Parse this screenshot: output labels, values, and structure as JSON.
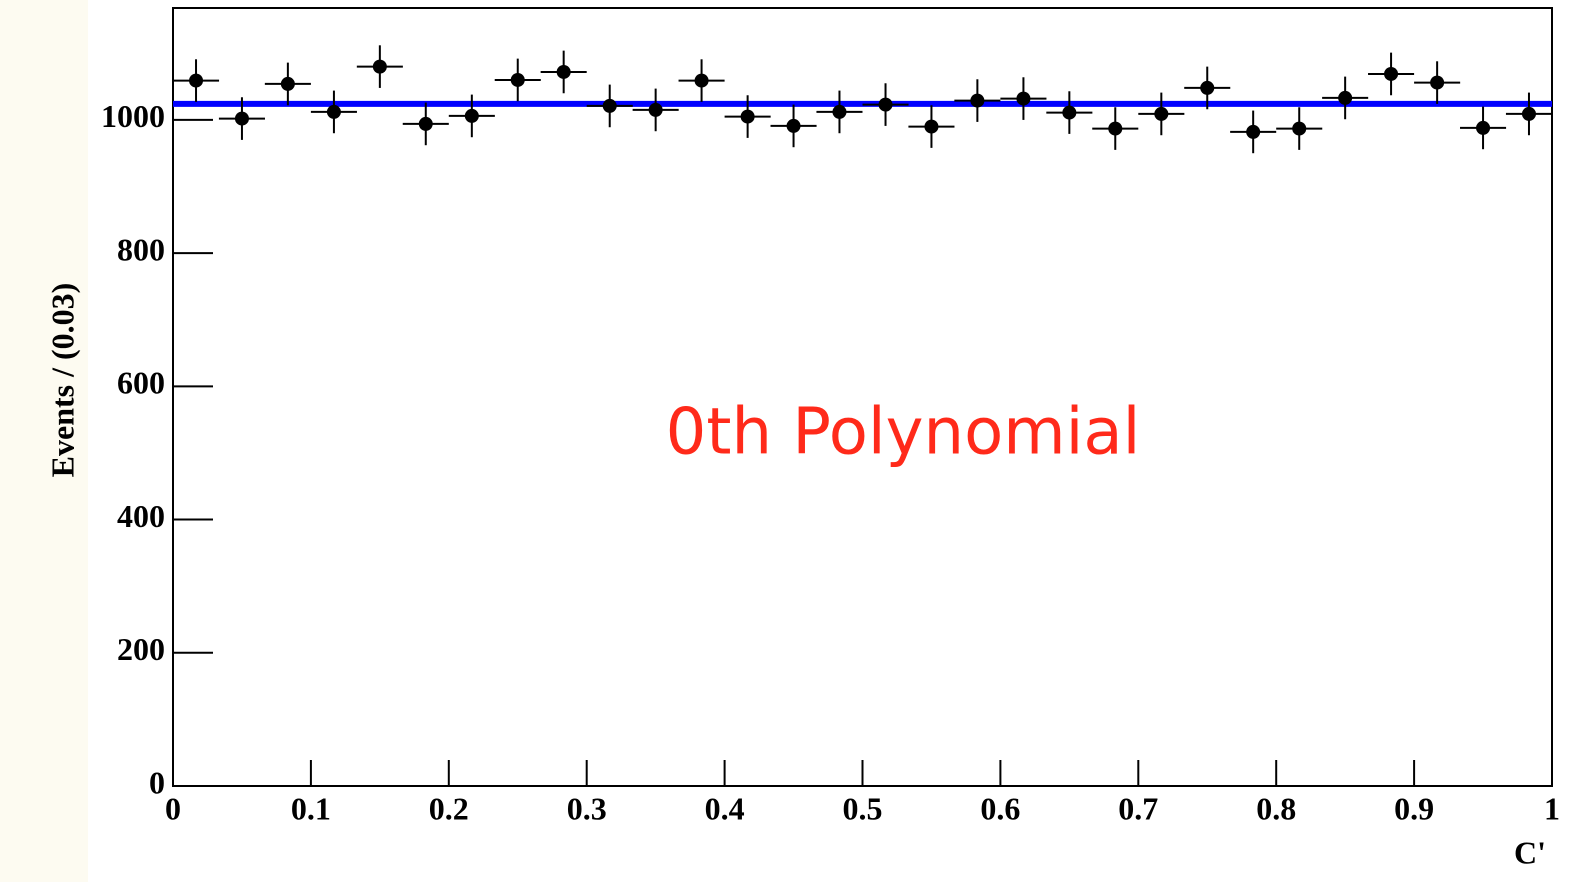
{
  "chart_data": {
    "type": "errorbar",
    "xlabel": "C'",
    "ylabel": "Events / (0.03)",
    "annotation": "0th Polynomial",
    "x": [
      0.0167,
      0.05,
      0.0833,
      0.1167,
      0.15,
      0.1833,
      0.2167,
      0.25,
      0.2833,
      0.3167,
      0.35,
      0.3833,
      0.4167,
      0.45,
      0.4833,
      0.5167,
      0.55,
      0.5833,
      0.6167,
      0.65,
      0.6833,
      0.7167,
      0.75,
      0.7833,
      0.8167,
      0.85,
      0.8833,
      0.9167,
      0.95,
      0.9833
    ],
    "values": [
      1059,
      1002,
      1054,
      1012,
      1080,
      994,
      1006,
      1060,
      1072,
      1021,
      1015,
      1059,
      1005,
      991,
      1012,
      1023,
      990,
      1029,
      1032,
      1011,
      987,
      1009,
      1048,
      982,
      987,
      1033,
      1069,
      1056,
      988,
      1009
    ],
    "xerr": 0.0167,
    "yerr": 32,
    "color": "#000000",
    "fit": {
      "value": 1024,
      "color": "#0000ff"
    },
    "annotation_color": "#ff2a1a",
    "xlim": [
      0,
      1
    ],
    "ylim": [
      0,
      1168
    ],
    "xticks": [
      0,
      0.1,
      0.2,
      0.3,
      0.4,
      0.5,
      0.6,
      0.7,
      0.8,
      0.9,
      1
    ],
    "yticks": [
      0,
      200,
      400,
      600,
      800,
      1000
    ]
  }
}
